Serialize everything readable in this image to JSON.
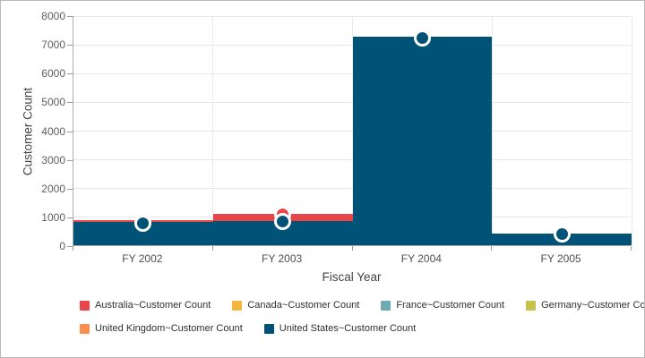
{
  "window": {
    "background": "#ffffff",
    "border_color": "#b9b9b9"
  },
  "chart_data": {
    "type": "bar",
    "stacked": true,
    "title": "",
    "xlabel": "Fiscal Year",
    "ylabel": "Customer Count",
    "categories": [
      "FY 2002",
      "FY 2003",
      "FY 2004",
      "FY 2005"
    ],
    "series": [
      {
        "name": "Australia~Customer Count",
        "color": "#E94649",
        "values": [
          65,
          240,
          0,
          0
        ]
      },
      {
        "name": "Canada~Customer Count",
        "color": "#F6B53F",
        "values": [
          0,
          0,
          0,
          0
        ]
      },
      {
        "name": "France~Customer Count",
        "color": "#6FAAB0",
        "values": [
          0,
          0,
          0,
          0
        ]
      },
      {
        "name": "Germany~Customer Count",
        "color": "#C4C24A",
        "values": [
          0,
          0,
          0,
          0
        ]
      },
      {
        "name": "United Kingdom~Customer Count",
        "color": "#FB8F4E",
        "values": [
          0,
          0,
          0,
          0
        ]
      },
      {
        "name": "United States~Customer Count",
        "color": "#005277",
        "values": [
          800,
          850,
          7250,
          420
        ]
      }
    ],
    "stack_order_bottom_to_top": [
      "United States~Customer Count",
      "Australia~Customer Count",
      "Canada~Customer Count",
      "France~Customer Count",
      "Germany~Customer Count",
      "United Kingdom~Customer Count"
    ],
    "ylim": [
      0,
      8000
    ],
    "ytick_step": 1000,
    "yticks": [
      "0",
      "1000",
      "2000",
      "3000",
      "4000",
      "5000",
      "6000",
      "7000",
      "8000"
    ],
    "marker": {
      "shape": "circle",
      "stroke_color": "#ffffff"
    },
    "grid": "horizontal-major-and-category-boundaries",
    "legend_position": "bottom-left",
    "legend_rows": 2,
    "legend_row_break_index": 4
  },
  "colors": {
    "grid_h": "#e5e5e5",
    "grid_v": "#e9e9e9",
    "axis_line": "#aeaeae",
    "tick_mark": "#9b9b9b",
    "y_tick_label": "#5e5e5e",
    "x_tick_label": "#4e4e4e",
    "axis_title": "#454545",
    "legend_text": "#2f2f2f"
  }
}
